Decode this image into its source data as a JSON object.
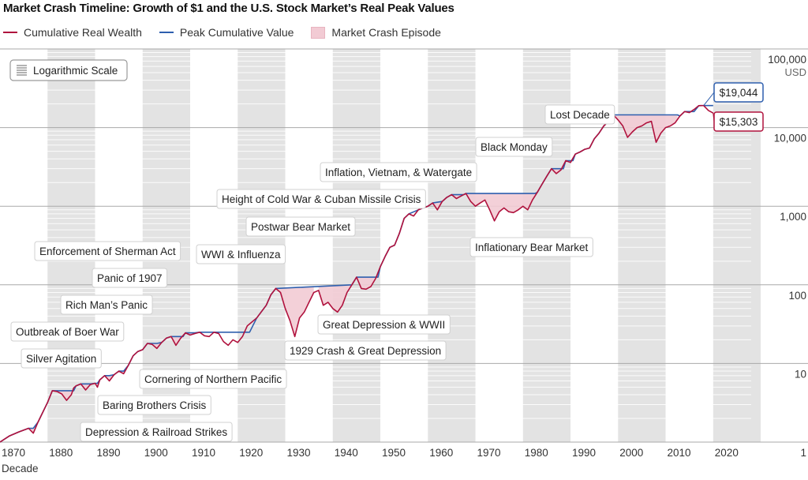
{
  "chart_data": {
    "type": "line",
    "title": "Market Crash Timeline: Growth of $1 and the U.S. Stock Market’s Real Peak Values",
    "xlabel": "Decade",
    "ylabel": "USD",
    "scale_badge": "Logarithmic Scale",
    "y_scale": "log",
    "xlim": [
      1870,
      2028
    ],
    "ylim": [
      1,
      100000
    ],
    "x_ticks": [
      1870,
      1880,
      1890,
      1900,
      1910,
      1920,
      1930,
      1940,
      1950,
      1960,
      1970,
      1980,
      1990,
      2000,
      2010,
      2020
    ],
    "x_tick_labels": [
      "1870",
      "1880",
      "1890",
      "1900",
      "1910",
      "1920",
      "1930",
      "1940",
      "1950",
      "1960",
      "1970",
      "1980",
      "1990",
      "2000",
      "2010",
      "2020"
    ],
    "y_ticks": [
      1,
      10,
      100,
      1000,
      10000,
      100000
    ],
    "y_tick_labels": [
      "1",
      "10",
      "100",
      "1,000",
      "10,000",
      "100,000"
    ],
    "grid": "horizontal minor log gridlines, alternating grey decade bands",
    "legend_position": "top-left",
    "legend": [
      {
        "name": "Cumulative Real Wealth",
        "color": "#b0123d",
        "kind": "line"
      },
      {
        "name": "Peak Cumulative Value",
        "color": "#2e5fae",
        "kind": "line"
      },
      {
        "name": "Market Crash Episode",
        "color": "#f2cbd4",
        "kind": "area"
      }
    ],
    "series": [
      {
        "name": "Cumulative Real Wealth",
        "color": "#b0123d",
        "points": [
          [
            1870.0,
            1.0
          ],
          [
            1872.0,
            1.2
          ],
          [
            1874.0,
            1.35
          ],
          [
            1876.0,
            1.5
          ],
          [
            1877.0,
            1.3
          ],
          [
            1878.0,
            1.8
          ],
          [
            1880.0,
            3.2
          ],
          [
            1881.0,
            4.5
          ],
          [
            1882.0,
            4.4
          ],
          [
            1883.0,
            4.1
          ],
          [
            1884.0,
            3.4
          ],
          [
            1885.0,
            4.0
          ],
          [
            1885.5,
            4.9
          ],
          [
            1886.0,
            5.2
          ],
          [
            1887.0,
            5.5
          ],
          [
            1888.0,
            4.6
          ],
          [
            1889.0,
            5.4
          ],
          [
            1890.0,
            5.6
          ],
          [
            1890.5,
            5.0
          ],
          [
            1891.0,
            6.2
          ],
          [
            1892.0,
            7.0
          ],
          [
            1893.0,
            6.0
          ],
          [
            1894.0,
            7.2
          ],
          [
            1895.0,
            8.0
          ],
          [
            1896.0,
            7.4
          ],
          [
            1897.0,
            9.5
          ],
          [
            1898.0,
            12.5
          ],
          [
            1899.0,
            14.2
          ],
          [
            1900.0,
            15.0
          ],
          [
            1901.0,
            18.0
          ],
          [
            1902.0,
            17.5
          ],
          [
            1903.0,
            15.5
          ],
          [
            1904.0,
            18.5
          ],
          [
            1905.0,
            21.0
          ],
          [
            1906.0,
            22.0
          ],
          [
            1907.0,
            17.0
          ],
          [
            1908.0,
            21.0
          ],
          [
            1909.0,
            24.5
          ],
          [
            1910.0,
            23.0
          ],
          [
            1911.0,
            24.0
          ],
          [
            1912.0,
            25.0
          ],
          [
            1913.0,
            22.5
          ],
          [
            1914.0,
            22.0
          ],
          [
            1915.0,
            25.0
          ],
          [
            1916.0,
            24.0
          ],
          [
            1917.0,
            19.0
          ],
          [
            1918.0,
            17.0
          ],
          [
            1919.0,
            20.0
          ],
          [
            1920.0,
            18.5
          ],
          [
            1921.0,
            22.0
          ],
          [
            1922.0,
            30.0
          ],
          [
            1924.0,
            38.0
          ],
          [
            1926.0,
            55.0
          ],
          [
            1927.0,
            75.0
          ],
          [
            1928.0,
            90.0
          ],
          [
            1929.0,
            80.0
          ],
          [
            1930.0,
            50.0
          ],
          [
            1931.0,
            35.0
          ],
          [
            1932.0,
            22.0
          ],
          [
            1933.0,
            38.0
          ],
          [
            1934.0,
            45.0
          ],
          [
            1935.0,
            60.0
          ],
          [
            1936.0,
            80.0
          ],
          [
            1937.0,
            85.0
          ],
          [
            1938.0,
            55.0
          ],
          [
            1939.0,
            60.0
          ],
          [
            1940.0,
            50.0
          ],
          [
            1941.0,
            45.0
          ],
          [
            1942.0,
            55.0
          ],
          [
            1943.0,
            80.0
          ],
          [
            1944.0,
            100.0
          ],
          [
            1945.0,
            125.0
          ],
          [
            1946.0,
            90.0
          ],
          [
            1947.0,
            88.0
          ],
          [
            1948.0,
            95.0
          ],
          [
            1949.0,
            120.0
          ],
          [
            1950.0,
            170.0
          ],
          [
            1951.0,
            230.0
          ],
          [
            1952.0,
            300.0
          ],
          [
            1953.0,
            320.0
          ],
          [
            1954.0,
            450.0
          ],
          [
            1955.0,
            700.0
          ],
          [
            1956.0,
            800.0
          ],
          [
            1957.0,
            750.0
          ],
          [
            1958.0,
            900.0
          ],
          [
            1959.0,
            950.0
          ],
          [
            1960.0,
            1000.0
          ],
          [
            1961.0,
            1100.0
          ],
          [
            1962.0,
            900.0
          ],
          [
            1963.0,
            1150.0
          ],
          [
            1964.0,
            1300.0
          ],
          [
            1965.0,
            1400.0
          ],
          [
            1966.0,
            1250.0
          ],
          [
            1967.0,
            1350.0
          ],
          [
            1968.0,
            1450.0
          ],
          [
            1969.0,
            1150.0
          ],
          [
            1970.0,
            1000.0
          ],
          [
            1971.0,
            1100.0
          ],
          [
            1972.0,
            1200.0
          ],
          [
            1973.0,
            900.0
          ],
          [
            1974.0,
            650.0
          ],
          [
            1975.0,
            850.0
          ],
          [
            1976.0,
            950.0
          ],
          [
            1977.0,
            850.0
          ],
          [
            1978.0,
            830.0
          ],
          [
            1979.0,
            900.0
          ],
          [
            1980.0,
            1000.0
          ],
          [
            1981.0,
            900.0
          ],
          [
            1982.0,
            1200.0
          ],
          [
            1983.0,
            1500.0
          ],
          [
            1984.0,
            1900.0
          ],
          [
            1985.0,
            2400.0
          ],
          [
            1986.0,
            3000.0
          ],
          [
            1987.0,
            2600.0
          ],
          [
            1988.0,
            2900.0
          ],
          [
            1989.0,
            3800.0
          ],
          [
            1990.0,
            3600.0
          ],
          [
            1991.0,
            4600.0
          ],
          [
            1992.0,
            4900.0
          ],
          [
            1993.0,
            5300.0
          ],
          [
            1994.0,
            5500.0
          ],
          [
            1995.0,
            7200.0
          ],
          [
            1996.0,
            8500.0
          ],
          [
            1997.0,
            10500.0
          ],
          [
            1998.0,
            12000.0
          ],
          [
            1999.0,
            14500.0
          ],
          [
            2000.0,
            12500.0
          ],
          [
            2001.0,
            10500.0
          ],
          [
            2002.0,
            7500.0
          ],
          [
            2003.0,
            8800.0
          ],
          [
            2004.0,
            10000.0
          ],
          [
            2005.0,
            10500.0
          ],
          [
            2006.0,
            11500.0
          ],
          [
            2007.0,
            12000.0
          ],
          [
            2008.0,
            6500.0
          ],
          [
            2009.0,
            8500.0
          ],
          [
            2010.0,
            10000.0
          ],
          [
            2011.0,
            10500.0
          ],
          [
            2012.0,
            11500.0
          ],
          [
            2013.0,
            14000.0
          ],
          [
            2014.0,
            16000.0
          ],
          [
            2015.0,
            15500.0
          ],
          [
            2016.0,
            17000.0
          ],
          [
            2017.0,
            19000.0
          ],
          [
            2018.0,
            19044.0
          ],
          [
            2019.0,
            16500.0
          ],
          [
            2020.0,
            15303.0
          ]
        ]
      },
      {
        "name": "Peak Cumulative Value",
        "color": "#2e5fae",
        "points": [
          [
            1870.0,
            1.0
          ],
          [
            1872.0,
            1.2
          ],
          [
            1874.0,
            1.35
          ],
          [
            1876.0,
            1.5
          ],
          [
            1877.0,
            1.5
          ],
          [
            1878.0,
            1.8
          ],
          [
            1880.0,
            3.2
          ],
          [
            1881.0,
            4.5
          ],
          [
            1885.5,
            4.5
          ],
          [
            1886.0,
            5.2
          ],
          [
            1887.0,
            5.5
          ],
          [
            1889.0,
            5.5
          ],
          [
            1890.0,
            5.6
          ],
          [
            1890.5,
            5.6
          ],
          [
            1891.0,
            6.2
          ],
          [
            1892.0,
            7.0
          ],
          [
            1893.0,
            7.0
          ],
          [
            1894.0,
            7.2
          ],
          [
            1895.0,
            8.0
          ],
          [
            1896.0,
            8.0
          ],
          [
            1897.0,
            9.5
          ],
          [
            1898.0,
            12.5
          ],
          [
            1899.0,
            14.2
          ],
          [
            1900.0,
            15.0
          ],
          [
            1901.0,
            18.0
          ],
          [
            1903.0,
            18.0
          ],
          [
            1904.0,
            18.5
          ],
          [
            1905.0,
            21.0
          ],
          [
            1906.0,
            22.0
          ],
          [
            1908.5,
            22.0
          ],
          [
            1909.0,
            24.5
          ],
          [
            1911.0,
            24.5
          ],
          [
            1912.0,
            25.0
          ],
          [
            1922.5,
            25.0
          ],
          [
            1924.0,
            38.0
          ],
          [
            1926.0,
            55.0
          ],
          [
            1927.0,
            75.0
          ],
          [
            1928.0,
            90.0
          ],
          [
            1944.0,
            100.0
          ],
          [
            1945.0,
            125.0
          ],
          [
            1949.5,
            125.0
          ],
          [
            1950.0,
            170.0
          ],
          [
            1951.0,
            230.0
          ],
          [
            1952.0,
            300.0
          ],
          [
            1953.0,
            320.0
          ],
          [
            1954.0,
            450.0
          ],
          [
            1955.0,
            700.0
          ],
          [
            1956.0,
            800.0
          ],
          [
            1958.0,
            900.0
          ],
          [
            1959.0,
            950.0
          ],
          [
            1960.0,
            1000.0
          ],
          [
            1961.0,
            1100.0
          ],
          [
            1963.0,
            1150.0
          ],
          [
            1964.0,
            1300.0
          ],
          [
            1965.0,
            1400.0
          ],
          [
            1967.5,
            1400.0
          ],
          [
            1968.0,
            1450.0
          ],
          [
            1982.5,
            1450.0
          ],
          [
            1983.0,
            1500.0
          ],
          [
            1984.0,
            1900.0
          ],
          [
            1985.0,
            2400.0
          ],
          [
            1986.0,
            3000.0
          ],
          [
            1988.5,
            3000.0
          ],
          [
            1989.0,
            3800.0
          ],
          [
            1990.5,
            3800.0
          ],
          [
            1991.0,
            4600.0
          ],
          [
            1992.0,
            4900.0
          ],
          [
            1993.0,
            5300.0
          ],
          [
            1994.0,
            5500.0
          ],
          [
            1995.0,
            7200.0
          ],
          [
            1996.0,
            8500.0
          ],
          [
            1997.0,
            10500.0
          ],
          [
            1998.0,
            12000.0
          ],
          [
            1999.0,
            14500.0
          ],
          [
            2012.5,
            14500.0
          ],
          [
            2013.0,
            14000.0
          ],
          [
            2014.0,
            16000.0
          ],
          [
            2016.0,
            16000.0
          ],
          [
            2017.0,
            19000.0
          ],
          [
            2018.0,
            19044.0
          ],
          [
            2020.0,
            19044.0
          ]
        ]
      }
    ],
    "crash_episodes": [
      {
        "label": "Depression & Railroad Strikes",
        "start": 1876.0,
        "end": 1878.0
      },
      {
        "label": "Baring Brothers Crisis",
        "start": 1881.0,
        "end": 1885.5
      },
      {
        "label": "Silver Agitation",
        "start": 1887.0,
        "end": 1889.0
      },
      {
        "label": "Cornering of Northern Pacific",
        "start": 1889.5,
        "end": 1890.8
      },
      {
        "label": "Outbreak of Boer War",
        "start": 1892.0,
        "end": 1893.8
      },
      {
        "label": "Rich Man’s Panic",
        "start": 1895.0,
        "end": 1897.0
      },
      {
        "label": "Panic of 1907",
        "start": 1901.0,
        "end": 1904.0
      },
      {
        "label": "Enforcement of Sherman Act",
        "start": 1906.0,
        "end": 1909.0
      },
      {
        "label": "WWI & Influenza",
        "start": 1909.0,
        "end": 1912.0
      },
      {
        "label": "1929 Crash & Great Depression",
        "start": 1928.0,
        "end": 1936.0
      },
      {
        "label": "Great Depression & WWII",
        "start": 1937.0,
        "end": 1944.0
      },
      {
        "label": "Postwar Bear Market",
        "start": 1945.0,
        "end": 1949.5
      },
      {
        "label": "Height of Cold War & Cuban Missile Crisis",
        "start": 1961.0,
        "end": 1963.0
      },
      {
        "label": "Inflation, Vietnam, & Watergate",
        "start": 1965.0,
        "end": 1967.5
      },
      {
        "label": "Inflationary Bear Market",
        "start": 1968.0,
        "end": 1982.5
      },
      {
        "label": "Black Monday",
        "start": 1986.0,
        "end": 1988.5
      },
      {
        "label": "Lost Decade",
        "start": 1999.0,
        "end": 2012.5
      }
    ],
    "annotations": [
      {
        "text": "Depression & Railroad Strikes",
        "x": 1877.0,
        "y": 1.4
      },
      {
        "text": "Baring Brothers Crisis",
        "x": 1884.0,
        "y": 3.6
      },
      {
        "text": "Silver Agitation",
        "x": 1888.0,
        "y": 4.8
      },
      {
        "text": "Cornering of Northern Pacific",
        "x": 1890.5,
        "y": 5.2
      },
      {
        "text": "Outbreak of Boer War",
        "x": 1893.0,
        "y": 6.2
      },
      {
        "text": "Rich Man’s Panic",
        "x": 1896.0,
        "y": 7.6
      },
      {
        "text": "Panic of 1907",
        "x": 1903.0,
        "y": 16.0
      },
      {
        "text": "Enforcement of Sherman Act",
        "x": 1907.0,
        "y": 18.0
      },
      {
        "text": "WWI & Influenza",
        "x": 1909.5,
        "y": 23.5
      },
      {
        "text": "1929 Crash & Great Depression",
        "x": 1932.0,
        "y": 24.0
      },
      {
        "text": "Great Depression & WWII",
        "x": 1938.0,
        "y": 58.0
      },
      {
        "text": "Postwar Bear Market",
        "x": 1945.5,
        "y": 95.0
      },
      {
        "text": "Height of Cold War & Cuban Missile Crisis",
        "x": 1962.0,
        "y": 920.0
      },
      {
        "text": "Inflation, Vietnam, & Watergate",
        "x": 1966.0,
        "y": 1280.0
      },
      {
        "text": "Inflationary Bear Market",
        "x": 1969.0,
        "y": 1100.0
      },
      {
        "text": "Black Monday",
        "x": 1987.0,
        "y": 2650.0
      },
      {
        "text": "Lost Decade",
        "x": 2000.0,
        "y": 13500.0
      }
    ],
    "end_labels": [
      {
        "text": "$19,044",
        "series": "Peak Cumulative Value",
        "x": 2018.0,
        "y": 19044.0,
        "color": "#2e5fae"
      },
      {
        "text": "$15,303",
        "series": "Cumulative Real Wealth",
        "x": 2020.0,
        "y": 15303.0,
        "color": "#b0123d"
      }
    ]
  }
}
